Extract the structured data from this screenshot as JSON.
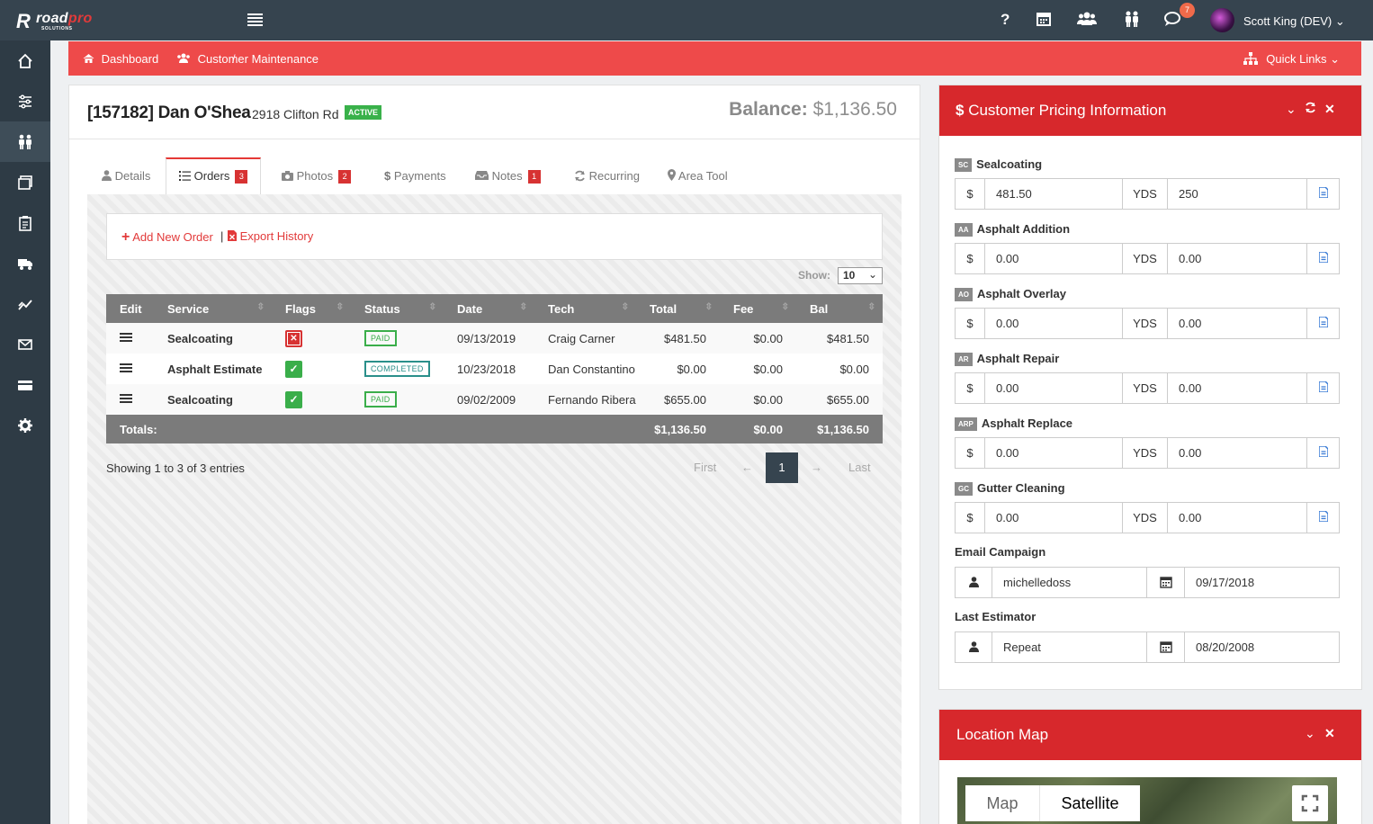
{
  "app": {
    "logo_word_a": "road",
    "logo_word_b": "pro",
    "logo_sub": "SOLUTIONS",
    "notif_count": "7",
    "user_name": "Scott King (DEV)",
    "brand_color": "#d7282c",
    "icons": [
      "menu-icon",
      "help-icon",
      "calendar-icon",
      "users-icon",
      "people-icon",
      "chat-icon"
    ]
  },
  "breadcrumb": {
    "dashboard": "Dashboard",
    "separator": "/",
    "current": "Customer Maintenance",
    "quick_links": "Quick Links"
  },
  "customer": {
    "title": "[157182] Dan O'Shea",
    "address": "2918 Clifton Rd",
    "status": "ACTIVE",
    "balance_label": "Balance:",
    "balance_value": "$1,136.50"
  },
  "tabs": [
    {
      "label": "Details",
      "count": ""
    },
    {
      "label": "Orders",
      "count": "3"
    },
    {
      "label": "Photos",
      "count": "2"
    },
    {
      "label": "Payments",
      "count": ""
    },
    {
      "label": "Notes",
      "count": "1"
    },
    {
      "label": "Recurring",
      "count": ""
    },
    {
      "label": "Area Tool",
      "count": ""
    }
  ],
  "orders": {
    "add_label": "Add New Order",
    "sep": "|",
    "export_label": "Export History",
    "show_label": "Show:",
    "show_value": "10",
    "columns": [
      "Edit",
      "Service",
      "Flags",
      "Status",
      "Date",
      "Tech",
      "Total",
      "Fee",
      "Bal"
    ],
    "rows": [
      {
        "service": "Sealcoating",
        "flag": "x",
        "status": "PAID",
        "date": "09/13/2019",
        "tech": "Craig Carner",
        "total": "$481.50",
        "fee": "$0.00",
        "bal": "$481.50"
      },
      {
        "service": "Asphalt Estimate",
        "flag": "ok",
        "status": "COMPLETED",
        "date": "10/23/2018",
        "tech": "Dan Constantino",
        "total": "$0.00",
        "fee": "$0.00",
        "bal": "$0.00"
      },
      {
        "service": "Sealcoating",
        "flag": "ok",
        "status": "PAID",
        "date": "09/02/2009",
        "tech": "Fernando Ribera",
        "total": "$655.00",
        "fee": "$0.00",
        "bal": "$655.00"
      }
    ],
    "totals_label": "Totals:",
    "totals": {
      "total": "$1,136.50",
      "fee": "$0.00",
      "bal": "$1,136.50"
    },
    "entries_text": "Showing 1 to 3 of 3 entries",
    "pager": {
      "first": "First",
      "prev": "←",
      "page": "1",
      "next": "→",
      "last": "Last"
    }
  },
  "pricing": {
    "title": "Customer Pricing Information",
    "currency_symbol": "$",
    "items": [
      {
        "abbr": "SC",
        "name": "Sealcoating",
        "unit": "YDS",
        "price": "481.50",
        "qty": "250"
      },
      {
        "abbr": "AA",
        "name": "Asphalt Addition",
        "unit": "YDS",
        "price": "0.00",
        "qty": "0.00"
      },
      {
        "abbr": "AO",
        "name": "Asphalt Overlay",
        "unit": "YDS",
        "price": "0.00",
        "qty": "0.00"
      },
      {
        "abbr": "AR",
        "name": "Asphalt Repair",
        "unit": "YDS",
        "price": "0.00",
        "qty": "0.00"
      },
      {
        "abbr": "ARP",
        "name": "Asphalt Replace",
        "unit": "YDS",
        "price": "0.00",
        "qty": "0.00"
      },
      {
        "abbr": "GC",
        "name": "Gutter Cleaning",
        "unit": "YDS",
        "price": "0.00",
        "qty": "0.00"
      }
    ],
    "email_campaign": {
      "label": "Email Campaign",
      "user": "michelledoss",
      "date": "09/17/2018"
    },
    "last_estimator": {
      "label": "Last Estimator",
      "user": "Repeat",
      "date": "08/20/2008"
    }
  },
  "map": {
    "title": "Location Map",
    "map_btn": "Map",
    "satellite_btn": "Satellite"
  }
}
